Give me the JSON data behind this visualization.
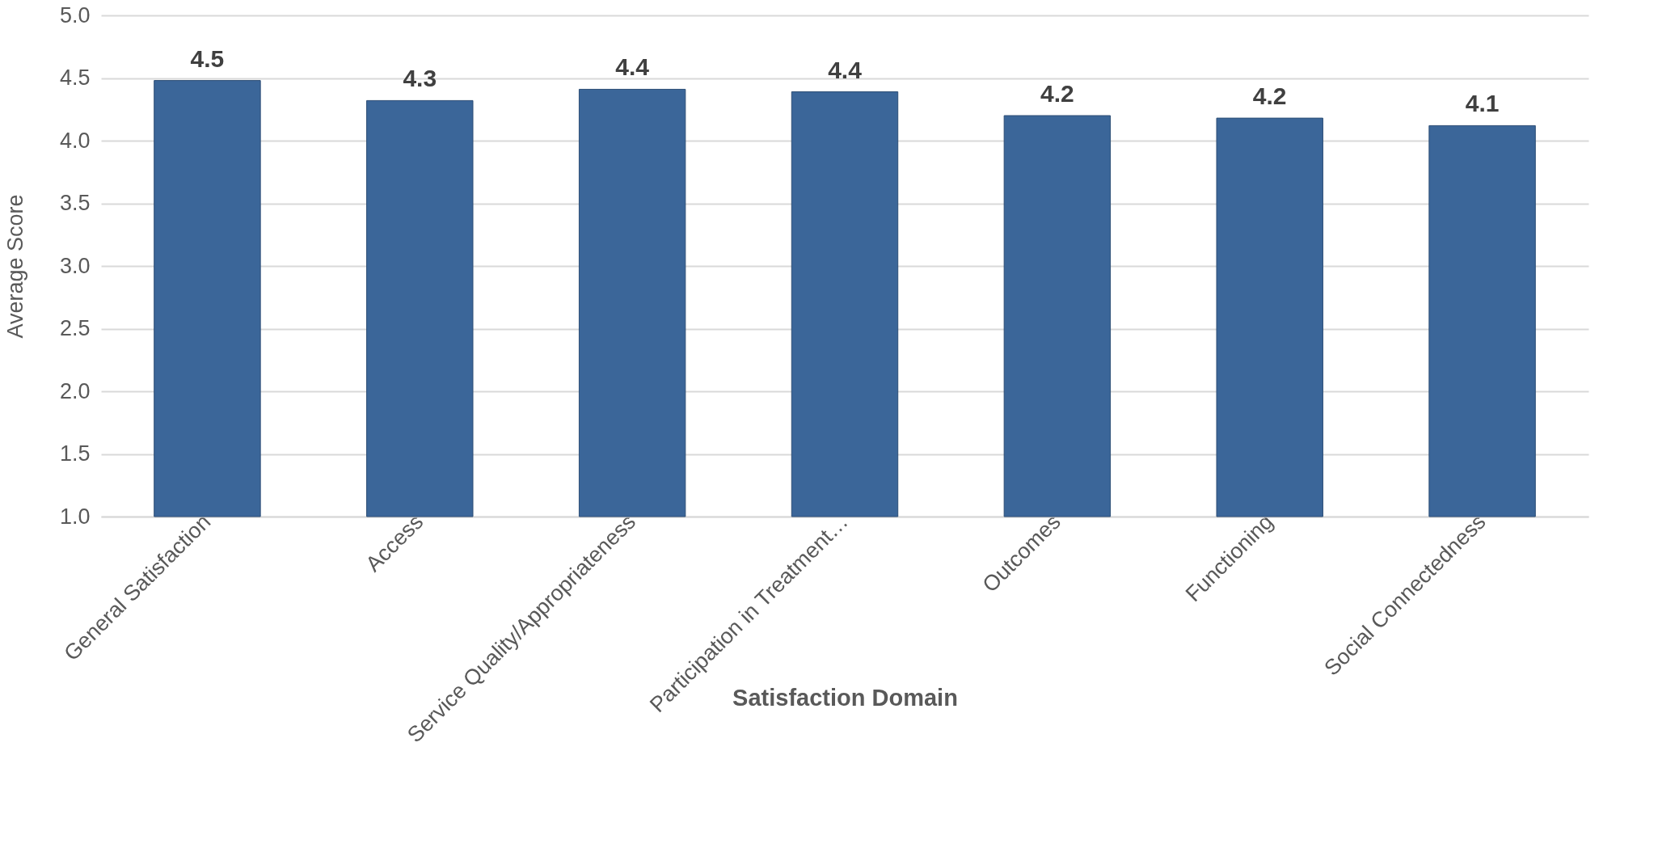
{
  "chart_data": {
    "type": "bar",
    "xlabel": "Satisfaction Domain",
    "ylabel": "Average Score",
    "categories": [
      "General Satisfaction",
      "Access",
      "Service Quality/Appropriateness",
      "Participation in Treatment…",
      "Outcomes",
      "Functioning",
      "Social Connectedness"
    ],
    "values": [
      4.48,
      4.32,
      4.41,
      4.39,
      4.2,
      4.18,
      4.12
    ],
    "value_labels": [
      "4.5",
      "4.3",
      "4.4",
      "4.4",
      "4.2",
      "4.2",
      "4.1"
    ],
    "color": "#3b6699",
    "ylim": [
      1.0,
      5.0
    ],
    "yticks": [
      {
        "value": 1.0,
        "label": "1.0"
      },
      {
        "value": 1.5,
        "label": "1.5"
      },
      {
        "value": 2.0,
        "label": "2.0"
      },
      {
        "value": 2.5,
        "label": "2.5"
      },
      {
        "value": 3.0,
        "label": "3.0"
      },
      {
        "value": 3.5,
        "label": "3.5"
      },
      {
        "value": 4.0,
        "label": "4.0"
      },
      {
        "value": 4.5,
        "label": "4.5"
      },
      {
        "value": 5.0,
        "label": "5.0"
      }
    ],
    "grid": "y"
  }
}
